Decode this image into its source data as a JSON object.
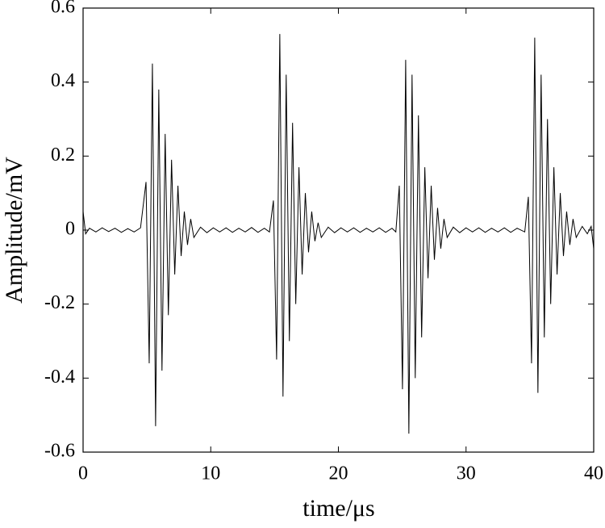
{
  "chart_data": {
    "type": "line",
    "x_label": "time/μs",
    "y_label": "Amplitude/mV",
    "xlim": [
      0,
      40
    ],
    "ylim": [
      -0.6,
      0.6
    ],
    "xticks": [
      0,
      10,
      20,
      30,
      40
    ],
    "yticks": [
      -0.6,
      -0.4,
      -0.2,
      0,
      0.2,
      0.4,
      0.6
    ],
    "grid": false,
    "series": [
      {
        "color": "#000000",
        "x": [
          0,
          0.2,
          0.5,
          1,
          1.5,
          2,
          2.5,
          3,
          3.5,
          4,
          4.5,
          4.93,
          5.18,
          5.43,
          5.68,
          5.93,
          6.18,
          6.43,
          6.68,
          6.93,
          7.18,
          7.43,
          7.68,
          7.93,
          8.18,
          8.43,
          8.68,
          9.2,
          9.7,
          10.2,
          10.7,
          11.2,
          11.7,
          12.2,
          12.7,
          13.2,
          13.7,
          14.2,
          14.6,
          14.91,
          15.16,
          15.41,
          15.66,
          15.91,
          16.16,
          16.41,
          16.66,
          16.91,
          17.16,
          17.41,
          17.66,
          17.91,
          18.16,
          18.41,
          18.66,
          19.2,
          19.7,
          20.2,
          20.7,
          21.2,
          21.7,
          22.2,
          22.7,
          23.2,
          23.7,
          24.2,
          24.5,
          24.77,
          25.02,
          25.27,
          25.52,
          25.77,
          26.02,
          26.27,
          26.52,
          26.77,
          27.02,
          27.27,
          27.52,
          27.77,
          28.02,
          28.27,
          28.52,
          29.0,
          29.5,
          30,
          30.5,
          31,
          31.5,
          32,
          32.5,
          33,
          33.5,
          34,
          34.6,
          34.88,
          35.13,
          35.38,
          35.63,
          35.88,
          36.13,
          36.38,
          36.63,
          36.88,
          37.13,
          37.38,
          37.63,
          37.88,
          38.13,
          38.38,
          38.63,
          39.1,
          39.5,
          39.8,
          40
        ],
        "values": [
          0.05,
          -0.01,
          0.005,
          -0.005,
          0.006,
          -0.004,
          0.005,
          -0.006,
          0.004,
          -0.005,
          0.006,
          0.13,
          -0.36,
          0.45,
          -0.53,
          0.38,
          -0.38,
          0.26,
          -0.23,
          0.19,
          -0.12,
          0.12,
          -0.07,
          0.05,
          -0.04,
          0.03,
          -0.02,
          0.008,
          -0.007,
          0.006,
          -0.005,
          0.006,
          -0.006,
          0.005,
          -0.005,
          0.007,
          -0.006,
          0.005,
          -0.005,
          0.08,
          -0.35,
          0.53,
          -0.45,
          0.42,
          -0.3,
          0.29,
          -0.2,
          0.17,
          -0.12,
          0.1,
          -0.06,
          0.05,
          -0.03,
          0.02,
          -0.02,
          0.008,
          -0.007,
          0.006,
          -0.005,
          0.006,
          -0.006,
          0.005,
          -0.005,
          0.006,
          -0.006,
          0.005,
          -0.005,
          0.12,
          -0.43,
          0.46,
          -0.55,
          0.42,
          -0.4,
          0.31,
          -0.29,
          0.17,
          -0.13,
          0.12,
          -0.08,
          0.06,
          -0.05,
          0.03,
          -0.02,
          0.008,
          -0.007,
          0.006,
          -0.005,
          0.006,
          -0.006,
          0.005,
          -0.005,
          0.006,
          -0.006,
          0.005,
          -0.005,
          0.09,
          -0.36,
          0.52,
          -0.44,
          0.42,
          -0.29,
          0.3,
          -0.2,
          0.17,
          -0.12,
          0.1,
          -0.07,
          0.05,
          -0.04,
          0.03,
          -0.02,
          0.01,
          -0.01,
          0.01,
          -0.05
        ]
      }
    ]
  }
}
